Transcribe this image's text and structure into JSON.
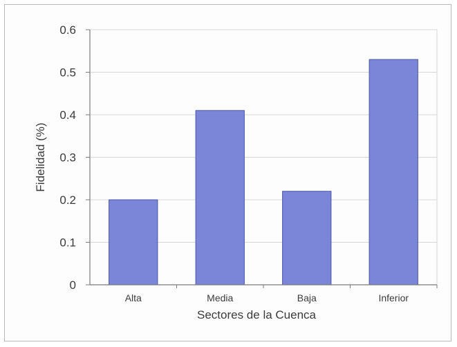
{
  "chart_data": {
    "type": "bar",
    "categories": [
      "Alta",
      "Media",
      "Baja",
      "Inferior"
    ],
    "values": [
      0.2,
      0.41,
      0.22,
      0.53
    ],
    "title": "",
    "xlabel": "Sectores de la Cuenca",
    "ylabel": "Fidelidad (%)",
    "ylim": [
      0,
      0.6
    ],
    "yticks": [
      "0",
      "0.1",
      "0.2",
      "0.3",
      "0.4",
      "0.5",
      "0.6"
    ],
    "grid": true,
    "legend": "none",
    "colors": {
      "bar_fill": "#7b86d8",
      "bar_stroke": "#4a55a8",
      "grid": "#d6d6d6",
      "axis": "#7a7a7a"
    }
  }
}
